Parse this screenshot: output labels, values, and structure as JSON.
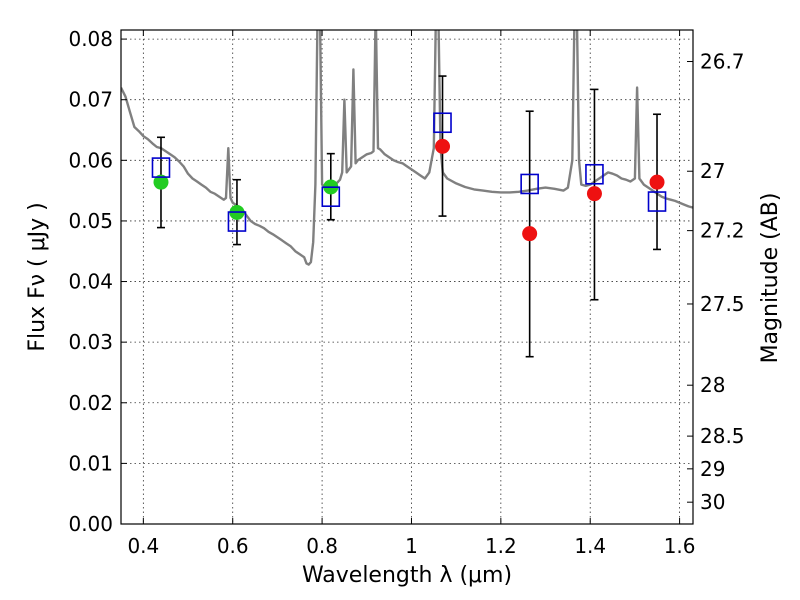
{
  "chart_data": {
    "type": "scatter",
    "xlabel": "Wavelength  λ (μm)",
    "ylabel": "Flux  Fν  ( μJy )",
    "y2label": "Magnitude (AB)",
    "xlim": [
      0.35,
      1.63
    ],
    "ylim": [
      0.0,
      0.0815
    ],
    "grid": true,
    "x_ticks": [
      0.4,
      0.6,
      0.8,
      1.0,
      1.2,
      1.4,
      1.6
    ],
    "x_tick_labels": [
      "0.4",
      "0.6",
      "0.8",
      "1",
      "1.2",
      "1.4",
      "1.6"
    ],
    "y_ticks": [
      0.0,
      0.01,
      0.02,
      0.03,
      0.04,
      0.05,
      0.06,
      0.07,
      0.08
    ],
    "y_tick_labels": [
      "0.00",
      "0.01",
      "0.02",
      "0.03",
      "0.04",
      "0.05",
      "0.06",
      "0.07",
      "0.08"
    ],
    "y2_ticks": [
      {
        "label": "26.7",
        "flux": 0.0763
      },
      {
        "label": "27",
        "flux": 0.0582
      },
      {
        "label": "27.2",
        "flux": 0.0484
      },
      {
        "label": "27.5",
        "flux": 0.0363
      },
      {
        "label": "28",
        "flux": 0.0229
      },
      {
        "label": "28.5",
        "flux": 0.0145
      },
      {
        "label": "29",
        "flux": 0.0091
      },
      {
        "label": "30",
        "flux": 0.0036
      }
    ],
    "colors": {
      "model": "#808080",
      "observed_optical": "#22cc22",
      "observed_nir": "#ee1111",
      "synthetic": "#0000cc",
      "errorbar": "#000000"
    },
    "series": [
      {
        "kind": "model",
        "points": [
          [
            0.35,
            0.072
          ],
          [
            0.36,
            0.0705
          ],
          [
            0.37,
            0.068
          ],
          [
            0.38,
            0.0655
          ],
          [
            0.39,
            0.0648
          ],
          [
            0.4,
            0.064
          ],
          [
            0.41,
            0.0635
          ],
          [
            0.42,
            0.0628
          ],
          [
            0.43,
            0.0622
          ],
          [
            0.44,
            0.062
          ],
          [
            0.45,
            0.0615
          ],
          [
            0.46,
            0.061
          ],
          [
            0.47,
            0.0605
          ],
          [
            0.48,
            0.0598
          ],
          [
            0.49,
            0.059
          ],
          [
            0.5,
            0.0578
          ],
          [
            0.51,
            0.057
          ],
          [
            0.52,
            0.0565
          ],
          [
            0.53,
            0.056
          ],
          [
            0.54,
            0.0555
          ],
          [
            0.55,
            0.0548
          ],
          [
            0.56,
            0.0545
          ],
          [
            0.57,
            0.054
          ],
          [
            0.58,
            0.0535
          ],
          [
            0.585,
            0.0538
          ],
          [
            0.59,
            0.062
          ],
          [
            0.595,
            0.0538
          ],
          [
            0.6,
            0.053
          ],
          [
            0.61,
            0.0525
          ],
          [
            0.62,
            0.052
          ],
          [
            0.63,
            0.051
          ],
          [
            0.64,
            0.05
          ],
          [
            0.65,
            0.0495
          ],
          [
            0.66,
            0.0492
          ],
          [
            0.67,
            0.0488
          ],
          [
            0.68,
            0.0482
          ],
          [
            0.69,
            0.0478
          ],
          [
            0.7,
            0.0473
          ],
          [
            0.71,
            0.0468
          ],
          [
            0.72,
            0.0463
          ],
          [
            0.73,
            0.0458
          ],
          [
            0.74,
            0.045
          ],
          [
            0.75,
            0.0445
          ],
          [
            0.76,
            0.044
          ],
          [
            0.765,
            0.043
          ],
          [
            0.77,
            0.0428
          ],
          [
            0.775,
            0.0432
          ],
          [
            0.78,
            0.0465
          ],
          [
            0.785,
            0.056
          ],
          [
            0.79,
            0.085
          ],
          [
            0.795,
            0.085
          ],
          [
            0.8,
            0.056
          ],
          [
            0.81,
            0.0555
          ],
          [
            0.82,
            0.0558
          ],
          [
            0.83,
            0.056
          ],
          [
            0.84,
            0.0568
          ],
          [
            0.845,
            0.058
          ],
          [
            0.85,
            0.07
          ],
          [
            0.855,
            0.058
          ],
          [
            0.86,
            0.0585
          ],
          [
            0.865,
            0.059
          ],
          [
            0.87,
            0.075
          ],
          [
            0.875,
            0.0595
          ],
          [
            0.88,
            0.06
          ],
          [
            0.89,
            0.0605
          ],
          [
            0.9,
            0.061
          ],
          [
            0.91,
            0.0612
          ],
          [
            0.915,
            0.0615
          ],
          [
            0.92,
            0.085
          ],
          [
            0.925,
            0.062
          ],
          [
            0.93,
            0.0618
          ],
          [
            0.94,
            0.061
          ],
          [
            0.95,
            0.0605
          ],
          [
            0.96,
            0.06
          ],
          [
            0.97,
            0.0597
          ],
          [
            0.98,
            0.0595
          ],
          [
            0.99,
            0.059
          ],
          [
            1.0,
            0.0585
          ],
          [
            1.01,
            0.058
          ],
          [
            1.02,
            0.0575
          ],
          [
            1.03,
            0.057
          ],
          [
            1.04,
            0.058
          ],
          [
            1.05,
            0.062
          ],
          [
            1.055,
            0.085
          ],
          [
            1.06,
            0.085
          ],
          [
            1.065,
            0.062
          ],
          [
            1.07,
            0.058
          ],
          [
            1.08,
            0.057
          ],
          [
            1.1,
            0.0562
          ],
          [
            1.12,
            0.0556
          ],
          [
            1.14,
            0.0552
          ],
          [
            1.16,
            0.055
          ],
          [
            1.18,
            0.0548
          ],
          [
            1.2,
            0.0547
          ],
          [
            1.22,
            0.0547
          ],
          [
            1.24,
            0.0548
          ],
          [
            1.26,
            0.055
          ],
          [
            1.28,
            0.0553
          ],
          [
            1.3,
            0.0555
          ],
          [
            1.32,
            0.0553
          ],
          [
            1.34,
            0.055
          ],
          [
            1.35,
            0.0555
          ],
          [
            1.36,
            0.06
          ],
          [
            1.365,
            0.085
          ],
          [
            1.37,
            0.085
          ],
          [
            1.375,
            0.06
          ],
          [
            1.38,
            0.056
          ],
          [
            1.39,
            0.0558
          ],
          [
            1.4,
            0.056
          ],
          [
            1.41,
            0.0565
          ],
          [
            1.42,
            0.057
          ],
          [
            1.43,
            0.0575
          ],
          [
            1.44,
            0.058
          ],
          [
            1.45,
            0.0578
          ],
          [
            1.46,
            0.0575
          ],
          [
            1.47,
            0.057
          ],
          [
            1.48,
            0.0568
          ],
          [
            1.49,
            0.0565
          ],
          [
            1.5,
            0.057
          ],
          [
            1.505,
            0.072
          ],
          [
            1.51,
            0.057
          ],
          [
            1.52,
            0.056
          ],
          [
            1.53,
            0.0555
          ],
          [
            1.54,
            0.055
          ],
          [
            1.55,
            0.0545
          ],
          [
            1.56,
            0.054
          ],
          [
            1.57,
            0.0537
          ],
          [
            1.58,
            0.0535
          ],
          [
            1.59,
            0.0533
          ],
          [
            1.6,
            0.053
          ],
          [
            1.61,
            0.0527
          ],
          [
            1.62,
            0.0524
          ],
          [
            1.63,
            0.0522
          ]
        ]
      },
      {
        "kind": "observed",
        "color_key": "observed_optical",
        "points": [
          {
            "x": 0.435,
            "y": 0.0564,
            "err_lo": 0.0489,
            "err_hi": 0.0638
          },
          {
            "x": 0.605,
            "y": 0.0514,
            "err_lo": 0.0461,
            "err_hi": 0.0568
          },
          {
            "x": 0.815,
            "y": 0.0556,
            "err_lo": 0.0502,
            "err_hi": 0.0611
          }
        ]
      },
      {
        "kind": "observed",
        "color_key": "observed_nir",
        "points": [
          {
            "x": 1.065,
            "y": 0.0623,
            "err_lo": 0.0508,
            "err_hi": 0.0739
          },
          {
            "x": 1.26,
            "y": 0.0479,
            "err_lo": 0.0276,
            "err_hi": 0.0681
          },
          {
            "x": 1.405,
            "y": 0.0545,
            "err_lo": 0.037,
            "err_hi": 0.0717
          },
          {
            "x": 1.545,
            "y": 0.0564,
            "err_lo": 0.0453,
            "err_hi": 0.0676
          }
        ]
      },
      {
        "kind": "synthetic",
        "color_key": "synthetic",
        "points": [
          {
            "x": 0.435,
            "y": 0.0588
          },
          {
            "x": 0.605,
            "y": 0.0499
          },
          {
            "x": 0.815,
            "y": 0.054
          },
          {
            "x": 1.065,
            "y": 0.0662
          },
          {
            "x": 1.26,
            "y": 0.0561
          },
          {
            "x": 1.405,
            "y": 0.0577
          },
          {
            "x": 1.545,
            "y": 0.0532
          }
        ]
      }
    ]
  }
}
